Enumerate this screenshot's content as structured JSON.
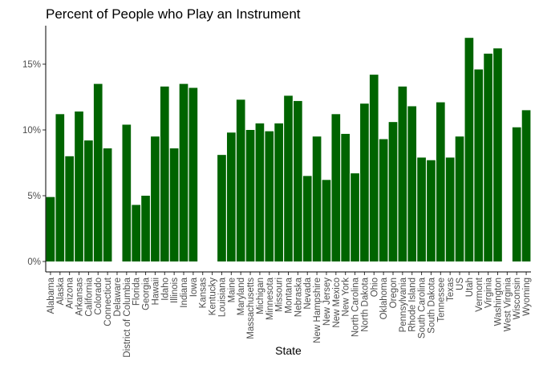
{
  "chart_data": {
    "type": "bar",
    "title": "Percent of People who Play an Instrument",
    "xlabel": "State",
    "ylabel": "",
    "ylim": [
      0,
      17.8
    ],
    "y_ticks": [
      0,
      5,
      10,
      15
    ],
    "y_tick_labels": [
      "0%",
      "5%",
      "10%",
      "15%"
    ],
    "grid": false,
    "legend": "none",
    "bar_color": "#006400",
    "categories": [
      "Alabama",
      "Alaska",
      "Arizona",
      "Arkansas",
      "California",
      "Colorado",
      "Connecticut",
      "Delaware",
      "District of Columbia",
      "Florida",
      "Georgia",
      "Hawaii",
      "Idaho",
      "Illinois",
      "Indiana",
      "Iowa",
      "Kansas",
      "Kentucky",
      "Louisiana",
      "Maine",
      "Maryland",
      "Massachusetts",
      "Michigan",
      "Minnesota",
      "Missouri",
      "Montana",
      "Nebraska",
      "Nevada",
      "New Hampshire",
      "New Jersey",
      "New Mexico",
      "New York",
      "North Carolina",
      "North Dakota",
      "Ohio",
      "Oklahoma",
      "Oregon",
      "Pennsylvania",
      "Rhode Island",
      "South Carolina",
      "South Dakota",
      "Tennessee",
      "Texas",
      "US",
      "Utah",
      "Vermont",
      "Virginia",
      "Washington",
      "West Virginia",
      "Wisconsin",
      "Wyoming"
    ],
    "values": [
      4.9,
      11.2,
      8.0,
      11.4,
      9.2,
      13.5,
      8.6,
      null,
      10.4,
      4.3,
      5.0,
      9.5,
      13.3,
      8.6,
      13.5,
      13.2,
      null,
      null,
      8.1,
      9.8,
      12.3,
      10.0,
      10.5,
      9.9,
      10.5,
      12.6,
      12.2,
      6.5,
      9.5,
      6.2,
      11.2,
      9.7,
      6.7,
      12.0,
      14.2,
      9.3,
      10.6,
      13.3,
      11.8,
      7.9,
      7.7,
      12.1,
      7.9,
      9.5,
      17.0,
      14.6,
      15.8,
      16.2,
      null,
      10.2,
      11.5
    ]
  }
}
